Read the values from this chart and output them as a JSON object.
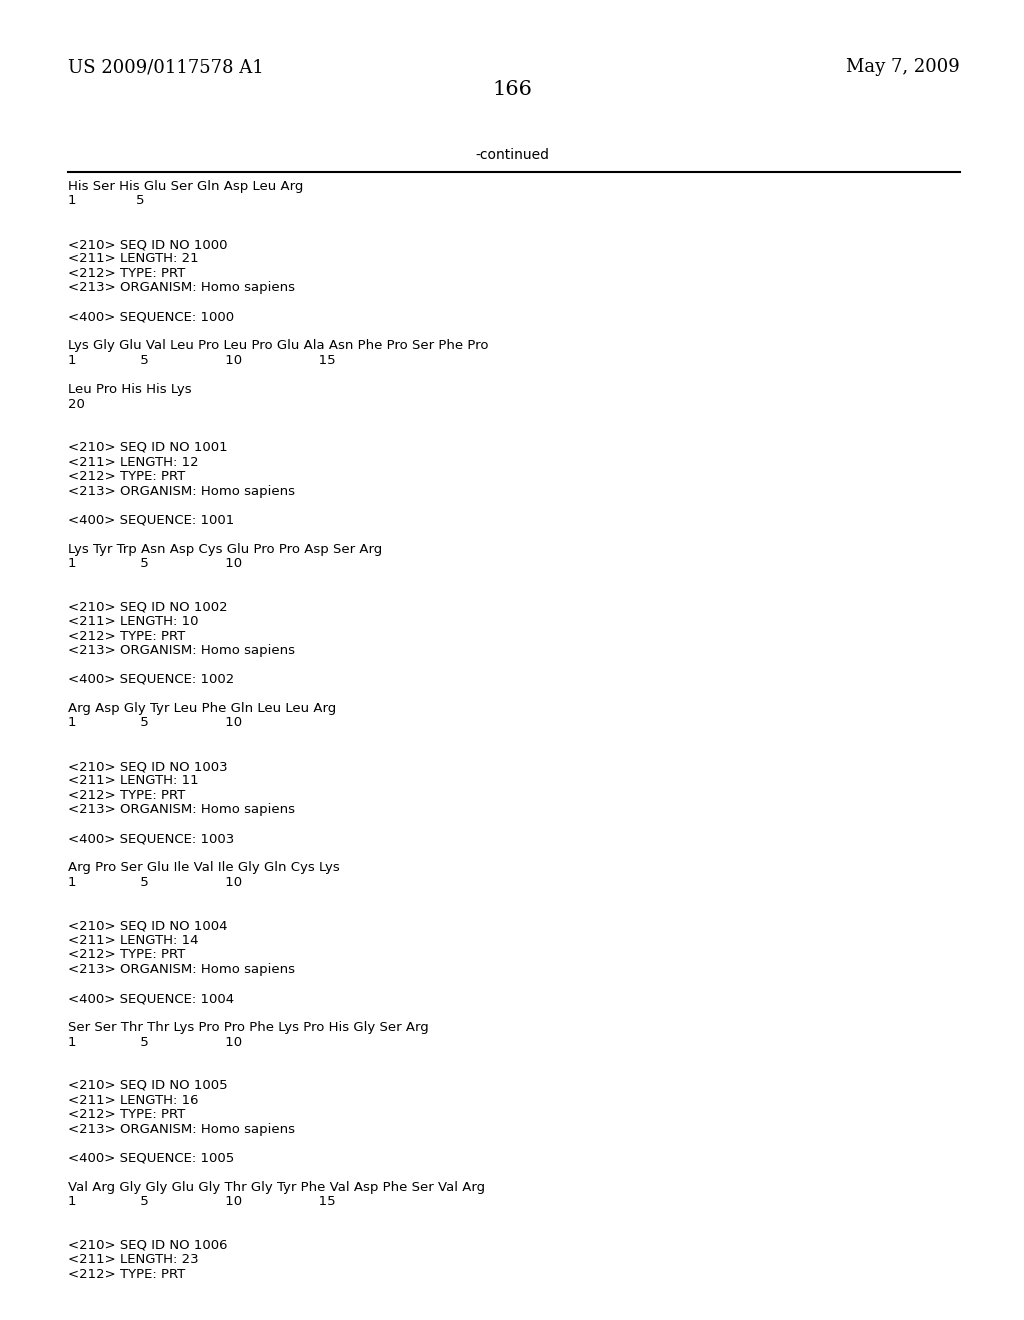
{
  "bg_color": "#ffffff",
  "header_left": "US 2009/0117578 A1",
  "header_right": "May 7, 2009",
  "page_number": "166",
  "continued_label": "-continued",
  "mono_font": "Courier New",
  "serif_font": "DejaVu Serif",
  "header_font_size": 13,
  "page_num_font_size": 15,
  "body_font_size": 9.5,
  "content_lines": [
    "His Ser His Glu Ser Gln Asp Leu Arg",
    "1              5",
    "",
    "",
    "<210> SEQ ID NO 1000",
    "<211> LENGTH: 21",
    "<212> TYPE: PRT",
    "<213> ORGANISM: Homo sapiens",
    "",
    "<400> SEQUENCE: 1000",
    "",
    "Lys Gly Glu Val Leu Pro Leu Pro Glu Ala Asn Phe Pro Ser Phe Pro",
    "1               5                  10                  15",
    "",
    "Leu Pro His His Lys",
    "20",
    "",
    "",
    "<210> SEQ ID NO 1001",
    "<211> LENGTH: 12",
    "<212> TYPE: PRT",
    "<213> ORGANISM: Homo sapiens",
    "",
    "<400> SEQUENCE: 1001",
    "",
    "Lys Tyr Trp Asn Asp Cys Glu Pro Pro Asp Ser Arg",
    "1               5                  10",
    "",
    "",
    "<210> SEQ ID NO 1002",
    "<211> LENGTH: 10",
    "<212> TYPE: PRT",
    "<213> ORGANISM: Homo sapiens",
    "",
    "<400> SEQUENCE: 1002",
    "",
    "Arg Asp Gly Tyr Leu Phe Gln Leu Leu Arg",
    "1               5                  10",
    "",
    "",
    "<210> SEQ ID NO 1003",
    "<211> LENGTH: 11",
    "<212> TYPE: PRT",
    "<213> ORGANISM: Homo sapiens",
    "",
    "<400> SEQUENCE: 1003",
    "",
    "Arg Pro Ser Glu Ile Val Ile Gly Gln Cys Lys",
    "1               5                  10",
    "",
    "",
    "<210> SEQ ID NO 1004",
    "<211> LENGTH: 14",
    "<212> TYPE: PRT",
    "<213> ORGANISM: Homo sapiens",
    "",
    "<400> SEQUENCE: 1004",
    "",
    "Ser Ser Thr Thr Lys Pro Pro Phe Lys Pro His Gly Ser Arg",
    "1               5                  10",
    "",
    "",
    "<210> SEQ ID NO 1005",
    "<211> LENGTH: 16",
    "<212> TYPE: PRT",
    "<213> ORGANISM: Homo sapiens",
    "",
    "<400> SEQUENCE: 1005",
    "",
    "Val Arg Gly Gly Glu Gly Thr Gly Tyr Phe Val Asp Phe Ser Val Arg",
    "1               5                  10                  15",
    "",
    "",
    "<210> SEQ ID NO 1006",
    "<211> LENGTH: 23",
    "<212> TYPE: PRT"
  ]
}
